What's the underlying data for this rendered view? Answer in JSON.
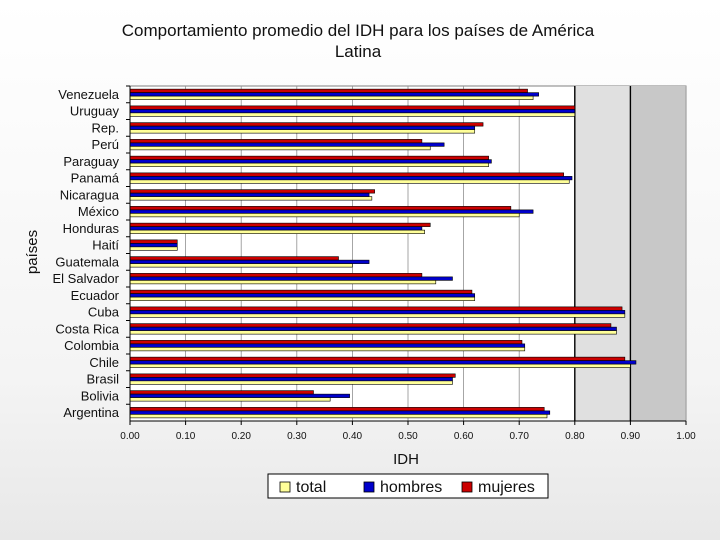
{
  "chart_data": {
    "type": "bar",
    "orientation": "horizontal",
    "title": "Comportamiento promedio del IDH para los países de América Latina",
    "title_lines": [
      "Comportamiento promedio del IDH para los países de América",
      "Latina"
    ],
    "xlabel": "IDH",
    "ylabel": "países",
    "xlim": [
      0,
      1
    ],
    "x_ticks": [
      "0.00",
      "0.10",
      "0.20",
      "0.30",
      "0.40",
      "0.50",
      "0.60",
      "0.70",
      "0.80",
      "0.90",
      "1.00"
    ],
    "grid": true,
    "legend_position": "bottom",
    "categories": [
      "Venezuela",
      "Uruguay",
      "Rep.",
      "Perú",
      "Paraguay",
      "Panamá",
      "Nicaragua",
      "México",
      "Honduras",
      "Haití",
      "Guatemala",
      "El Salvador",
      "Ecuador",
      "Cuba",
      "Costa Rica",
      "Colombia",
      "Chile",
      "Brasil",
      "Bolivia",
      "Argentina"
    ],
    "series": [
      {
        "name": "total",
        "color": "#ffff99",
        "values": [
          0.725,
          0.8,
          0.62,
          0.54,
          0.645,
          0.79,
          0.435,
          0.7,
          0.53,
          0.085,
          0.4,
          0.55,
          0.62,
          0.89,
          0.875,
          0.71,
          0.9,
          0.58,
          0.36,
          0.75
        ]
      },
      {
        "name": "hombres",
        "color": "#0000cc",
        "values": [
          0.735,
          0.8,
          0.62,
          0.565,
          0.65,
          0.795,
          0.43,
          0.725,
          0.525,
          0.085,
          0.43,
          0.58,
          0.62,
          0.89,
          0.875,
          0.71,
          0.91,
          0.58,
          0.395,
          0.755
        ]
      },
      {
        "name": "mujeres",
        "color": "#cc0000",
        "values": [
          0.715,
          0.8,
          0.635,
          0.525,
          0.645,
          0.78,
          0.44,
          0.685,
          0.54,
          0.085,
          0.375,
          0.525,
          0.615,
          0.885,
          0.865,
          0.705,
          0.89,
          0.585,
          0.33,
          0.745
        ]
      }
    ]
  }
}
